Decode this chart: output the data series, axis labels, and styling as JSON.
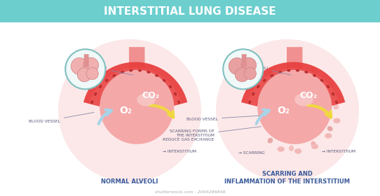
{
  "title": "INTERSTITIAL LUNG DISEASE",
  "title_bg": "#6dcece",
  "title_color": "white",
  "title_fontsize": 11,
  "bg_color": "#ffffff",
  "left_label": "NORMAL ALVEOLI",
  "right_label": "SCARRING AND\nINFLAMMATION OF THE INTERSTITIUM",
  "label_color": "#3a5a9a",
  "label_fontsize": 6.0,
  "alv_body_color": "#f5a8a8",
  "alv_body_light": "#f9c8c8",
  "alv_neck_color": "#f09090",
  "bg_circle_color": "#fce8e8",
  "vessel_outer_color": "#e84040",
  "vessel_inner_color": "#f06060",
  "rbc_color": "#c03030",
  "rbc_edge": "#a02020",
  "inset_bg": "#f0f8f8",
  "inset_border": "#80c0c0",
  "co2_text": "CO₂",
  "o2_text": "O₂",
  "arrow_o2_color": "#a8d4e8",
  "arrow_co2_color": "#f0d840",
  "ann_color": "#555577",
  "ann_fontsize": 4.2,
  "label_ann_fontsize": 5.5,
  "watermark": "shutterstock.com · 2094286846",
  "watermark_color": "#aaaaaa",
  "watermark_fontsize": 4.5
}
